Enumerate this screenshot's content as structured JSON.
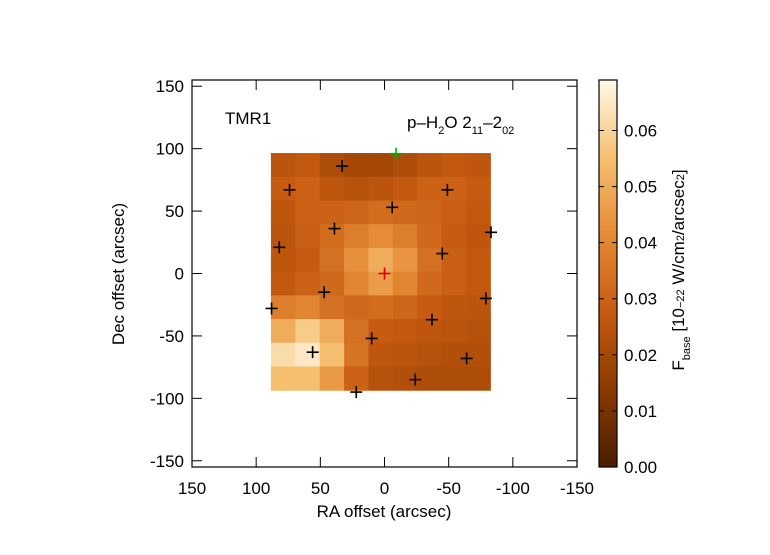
{
  "chart_data": {
    "type": "heatmap",
    "title": "TMR1",
    "annotation": [
      {
        "text": "p–H"
      },
      {
        "text": "2",
        "shift": "sub"
      },
      {
        "text": "O 2"
      },
      {
        "text": "11",
        "shift": "sub"
      },
      {
        "text": "–2"
      },
      {
        "text": "02",
        "shift": "sub"
      }
    ],
    "x_label": "RA offset (arcsec)",
    "y_label": "Dec offset (arcsec)",
    "xlim": [
      150,
      -150
    ],
    "ylim": [
      -155,
      155
    ],
    "xticks": [
      150,
      100,
      50,
      0,
      -50,
      -100,
      -150
    ],
    "yticks": [
      150,
      100,
      50,
      0,
      -50,
      -100,
      -150
    ],
    "x": [
      79,
      60,
      41,
      22,
      3,
      -16,
      -35,
      -54,
      -73
    ],
    "y": [
      87,
      68,
      49,
      30,
      11,
      -8,
      -27,
      -46,
      -65,
      -84
    ],
    "z": [
      [
        0.025,
        0.027,
        0.022,
        0.02,
        0.02,
        0.022,
        0.025,
        0.027,
        0.026
      ],
      [
        0.028,
        0.03,
        0.026,
        0.024,
        0.025,
        0.027,
        0.03,
        0.03,
        0.028
      ],
      [
        0.026,
        0.03,
        0.03,
        0.031,
        0.033,
        0.032,
        0.031,
        0.029,
        0.027
      ],
      [
        0.025,
        0.029,
        0.033,
        0.038,
        0.042,
        0.038,
        0.032,
        0.028,
        0.026
      ],
      [
        0.026,
        0.028,
        0.034,
        0.043,
        0.05,
        0.044,
        0.034,
        0.029,
        0.027
      ],
      [
        0.027,
        0.03,
        0.032,
        0.04,
        0.046,
        0.04,
        0.032,
        0.029,
        0.027
      ],
      [
        0.038,
        0.04,
        0.034,
        0.032,
        0.033,
        0.031,
        0.028,
        0.026,
        0.025
      ],
      [
        0.05,
        0.058,
        0.05,
        0.034,
        0.028,
        0.027,
        0.026,
        0.025,
        0.024
      ],
      [
        0.062,
        0.065,
        0.055,
        0.035,
        0.026,
        0.025,
        0.024,
        0.023,
        0.023
      ],
      [
        0.055,
        0.055,
        0.045,
        0.03,
        0.024,
        0.023,
        0.022,
        0.022,
        0.022
      ]
    ],
    "colorscale": [
      "#4a1e00",
      "#8a3a00",
      "#c65a10",
      "#e58a35",
      "#f5c070",
      "#fff9e6"
    ],
    "zlim": [
      0,
      0.069
    ],
    "zticks": [
      {
        "value": 0,
        "label": "0.00"
      },
      0.01,
      0.02,
      0.03,
      0.04,
      0.05,
      0.06
    ],
    "colorbar_label": [
      {
        "text": "F"
      },
      {
        "text": "base",
        "shift": "sub"
      },
      {
        "text": " [10"
      },
      {
        "text": "−22",
        "shift": "sup"
      },
      {
        "text": " W/cm"
      },
      {
        "text": "2",
        "shift": "sup"
      },
      {
        "text": "/arcsec"
      },
      {
        "text": "2",
        "shift": "sup"
      },
      {
        "text": "]"
      }
    ],
    "points": [
      {
        "color": "#000000",
        "x": [
          33,
          74,
          -49,
          -6,
          39,
          82,
          -83,
          -45,
          47,
          -79,
          -37,
          88,
          10,
          56,
          -64,
          -24,
          22
        ],
        "y": [
          86,
          67,
          67,
          53,
          36,
          21,
          33,
          16,
          -15,
          -20,
          -37,
          -28,
          -52,
          -63,
          -68,
          -85,
          -95
        ]
      },
      {
        "color": "#e00000",
        "x": [
          0
        ],
        "y": [
          0
        ]
      },
      {
        "color": "#00b000",
        "x": [
          -9
        ],
        "y": [
          96
        ]
      }
    ]
  }
}
